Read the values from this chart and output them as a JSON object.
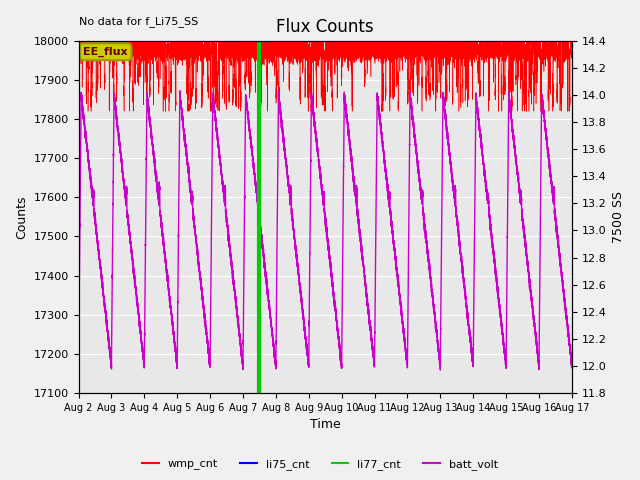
{
  "title": "Flux Counts",
  "xlabel": "Time",
  "ylabel_left": "Counts",
  "ylabel_right": "7500 SS",
  "no_data_text": "No data for f_Li75_SS",
  "ee_flux_label": "EE_flux",
  "ylim_left": [
    17100,
    18000
  ],
  "ylim_right": [
    11.8,
    14.4
  ],
  "yticks_left": [
    17100,
    17200,
    17300,
    17400,
    17500,
    17600,
    17700,
    17800,
    17900,
    18000
  ],
  "yticks_right": [
    11.8,
    12.0,
    12.2,
    12.4,
    12.6,
    12.8,
    13.0,
    13.2,
    13.4,
    13.6,
    13.8,
    14.0,
    14.2,
    14.4
  ],
  "xtick_labels": [
    "Aug 2",
    "Aug 3",
    "Aug 4",
    "Aug 5",
    "Aug 6",
    "Aug 7",
    "Aug 8",
    "Aug 9",
    "Aug 10",
    "Aug 11",
    "Aug 12",
    "Aug 13",
    "Aug 14",
    "Aug 15",
    "Aug 16",
    "Aug 17"
  ],
  "wmp_color": "#ff0000",
  "li75_color": "#0000ff",
  "li77_color": "#00cc00",
  "batt_color": "#cc00cc",
  "ee_flux_bg": "#cccc00",
  "ee_flux_border": "#999900",
  "bg_color": "#e8e8e8",
  "grid_color": "#ffffff",
  "wmp_base": 17975,
  "li77_value": 18000,
  "li77_spike_day": 7.5,
  "batt_min": 12.0,
  "batt_max": 14.0,
  "n_batt_cycles": 15,
  "figsize": [
    6.4,
    4.8
  ],
  "dpi": 100
}
